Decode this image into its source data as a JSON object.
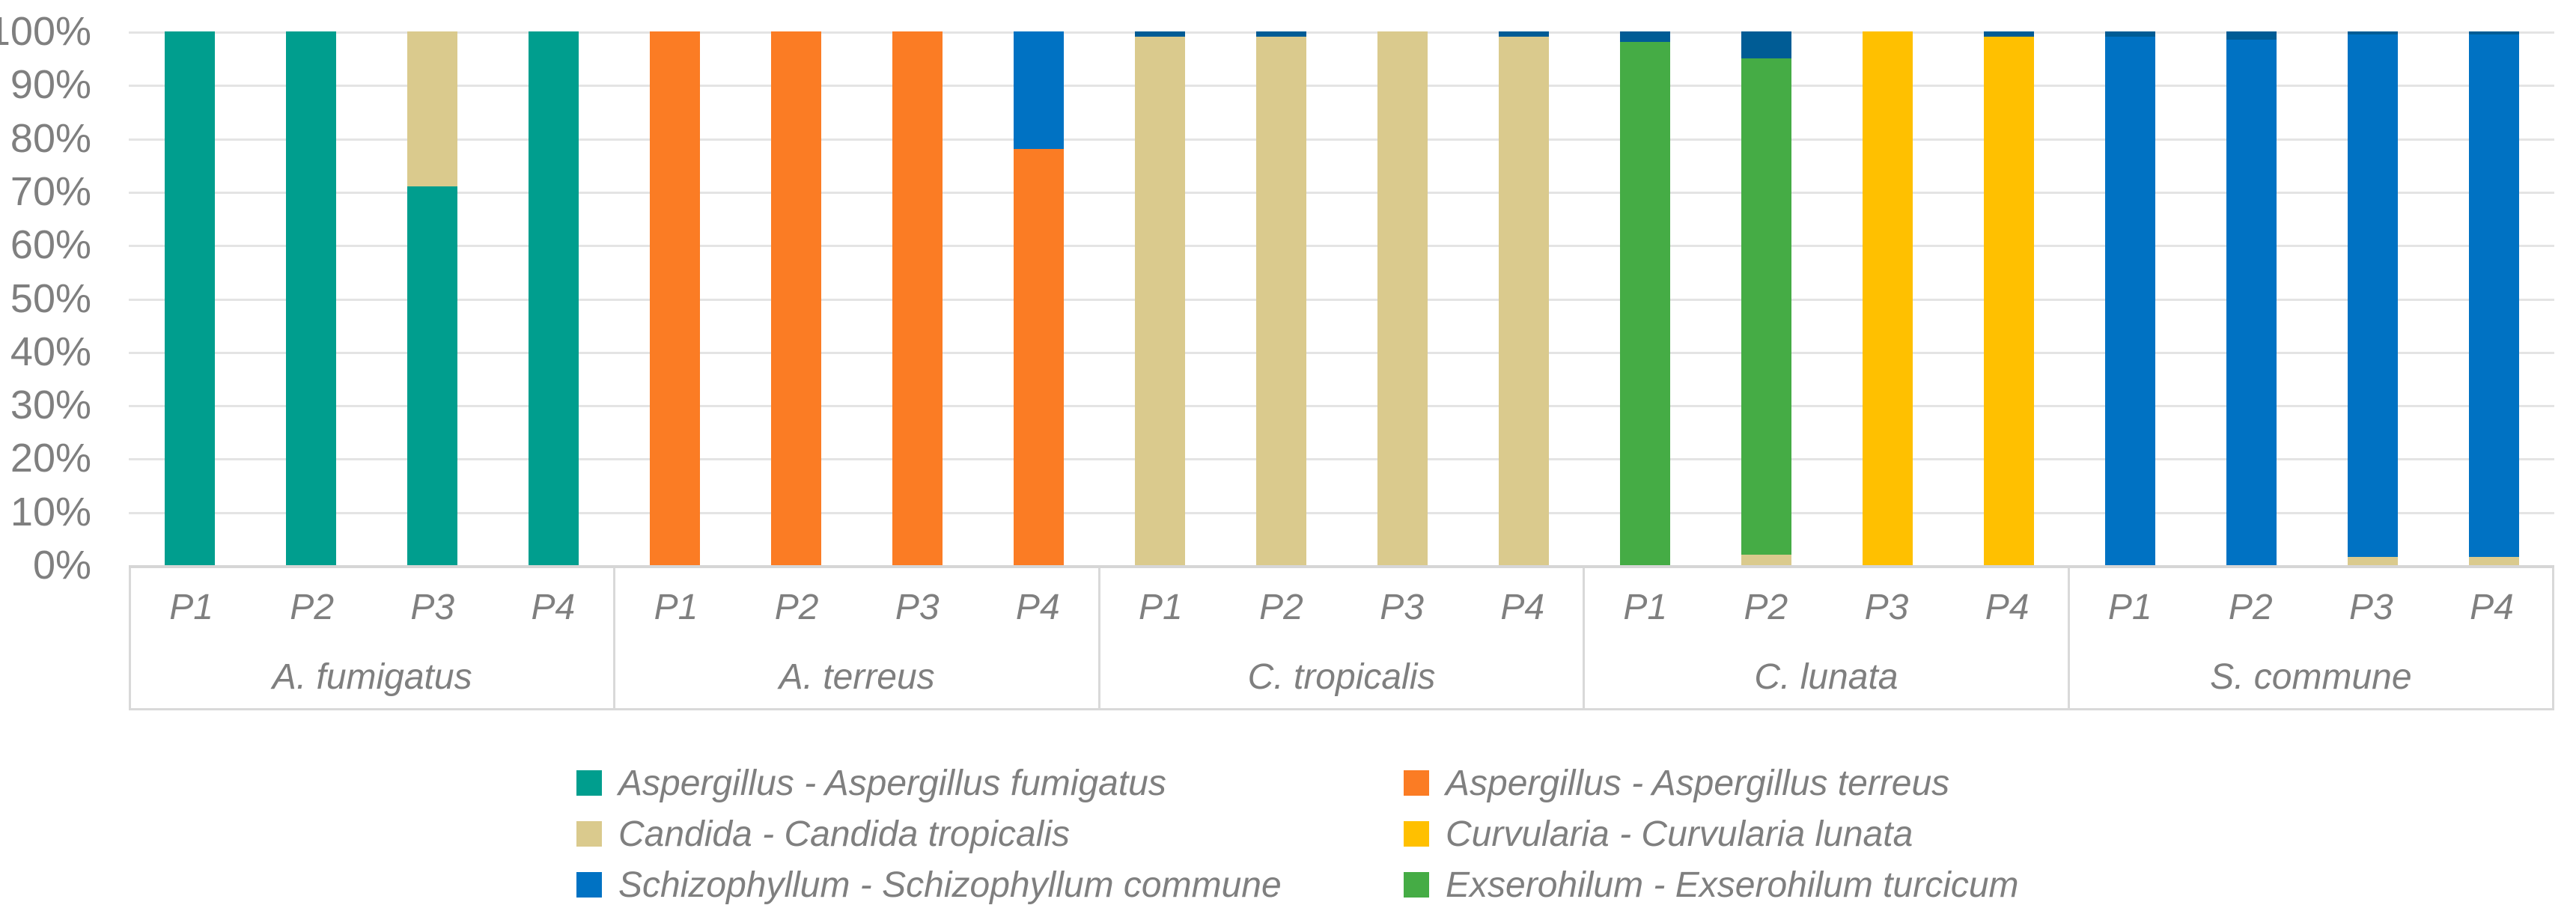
{
  "chart_data": {
    "type": "bar",
    "stacking": "percent",
    "title": "",
    "xlabel": "",
    "ylabel": "",
    "y_axis": {
      "min": 0,
      "max": 100,
      "tick_labels": [
        "100%",
        "90%",
        "80%",
        "70%",
        "60%",
        "50%",
        "40%",
        "30%",
        "20%",
        "10%",
        "0%"
      ],
      "gridlines": true
    },
    "x_axis": {
      "bar_labels_per_group": [
        "P1",
        "P2",
        "P3",
        "P4"
      ],
      "group_labels": [
        "A. fumigatus",
        "A. terreus",
        "C. tropicalis",
        "C. lunata",
        "S. commune"
      ]
    },
    "legend": {
      "position": "bottom",
      "columns": 2,
      "entries": [
        {
          "label": "Aspergillus - Aspergillus fumigatus",
          "color": "#009E8E"
        },
        {
          "label": "Aspergillus - Aspergillus terreus",
          "color": "#FB7C24"
        },
        {
          "label": "Candida - Candida tropicalis",
          "color": "#DACA8D"
        },
        {
          "label": "Curvularia - Curvularia lunata",
          "color": "#FFC000"
        },
        {
          "label": "Schizophyllum - Schizophyllum commune",
          "color": "#0072C3"
        },
        {
          "label": "Exserohilum - Exserohilum turcicum",
          "color": "#45AC45"
        }
      ]
    },
    "rendered_thin_cap_color": "#005C95",
    "groups": [
      {
        "label": "A. fumigatus",
        "bars": [
          {
            "label": "P1",
            "segments": [
              {
                "series": "Aspergillus - Aspergillus fumigatus",
                "value": 100,
                "color": "#009E8E"
              }
            ]
          },
          {
            "label": "P2",
            "segments": [
              {
                "series": "Aspergillus - Aspergillus fumigatus",
                "value": 100,
                "color": "#009E8E"
              }
            ]
          },
          {
            "label": "P3",
            "segments": [
              {
                "series": "Aspergillus - Aspergillus fumigatus",
                "value": 71,
                "color": "#009E8E"
              },
              {
                "series": "Candida - Candida tropicalis",
                "value": 29,
                "color": "#DACA8D"
              }
            ]
          },
          {
            "label": "P4",
            "segments": [
              {
                "series": "Aspergillus - Aspergillus fumigatus",
                "value": 100,
                "color": "#009E8E"
              }
            ]
          }
        ]
      },
      {
        "label": "A. terreus",
        "bars": [
          {
            "label": "P1",
            "segments": [
              {
                "series": "Aspergillus - Aspergillus terreus",
                "value": 100,
                "color": "#FB7C24"
              }
            ]
          },
          {
            "label": "P2",
            "segments": [
              {
                "series": "Aspergillus - Aspergillus terreus",
                "value": 100,
                "color": "#FB7C24"
              }
            ]
          },
          {
            "label": "P3",
            "segments": [
              {
                "series": "Aspergillus - Aspergillus terreus",
                "value": 100,
                "color": "#FB7C24"
              }
            ]
          },
          {
            "label": "P4",
            "segments": [
              {
                "series": "Aspergillus - Aspergillus terreus",
                "value": 78,
                "color": "#FB7C24"
              },
              {
                "series": "Schizophyllum - Schizophyllum commune",
                "value": 22,
                "color": "#0072C3"
              }
            ]
          }
        ]
      },
      {
        "label": "C. tropicalis",
        "bars": [
          {
            "label": "P1",
            "segments": [
              {
                "series": "Candida - Candida tropicalis",
                "value": 99,
                "color": "#DACA8D"
              },
              {
                "series": "Schizophyllum - Schizophyllum commune",
                "value": 1,
                "color": "#005C95"
              }
            ]
          },
          {
            "label": "P2",
            "segments": [
              {
                "series": "Candida - Candida tropicalis",
                "value": 99,
                "color": "#DACA8D"
              },
              {
                "series": "Schizophyllum - Schizophyllum commune",
                "value": 1,
                "color": "#005C95"
              }
            ]
          },
          {
            "label": "P3",
            "segments": [
              {
                "series": "Candida - Candida tropicalis",
                "value": 100,
                "color": "#DACA8D"
              }
            ]
          },
          {
            "label": "P4",
            "segments": [
              {
                "series": "Candida - Candida tropicalis",
                "value": 99,
                "color": "#DACA8D"
              },
              {
                "series": "Schizophyllum - Schizophyllum commune",
                "value": 1,
                "color": "#005C95"
              }
            ]
          }
        ]
      },
      {
        "label": "C. lunata",
        "bars": [
          {
            "label": "P1",
            "segments": [
              {
                "series": "Exserohilum - Exserohilum turcicum",
                "value": 98,
                "color": "#45AC45"
              },
              {
                "series": "Schizophyllum - Schizophyllum commune",
                "value": 2,
                "color": "#005C95"
              }
            ]
          },
          {
            "label": "P2",
            "segments": [
              {
                "series": "Candida - Candida tropicalis",
                "value": 2,
                "color": "#DACA8D"
              },
              {
                "series": "Exserohilum - Exserohilum turcicum",
                "value": 93,
                "color": "#45AC45"
              },
              {
                "series": "Schizophyllum - Schizophyllum commune",
                "value": 5,
                "color": "#005C95"
              }
            ]
          },
          {
            "label": "P3",
            "segments": [
              {
                "series": "Curvularia - Curvularia lunata",
                "value": 100,
                "color": "#FFC000"
              }
            ]
          },
          {
            "label": "P4",
            "segments": [
              {
                "series": "Curvularia - Curvularia lunata",
                "value": 99,
                "color": "#FFC000"
              },
              {
                "series": "Schizophyllum - Schizophyllum commune",
                "value": 1,
                "color": "#005C95"
              }
            ]
          }
        ]
      },
      {
        "label": "S. commune",
        "bars": [
          {
            "label": "P1",
            "segments": [
              {
                "series": "Schizophyllum - Schizophyllum commune",
                "value": 99,
                "color": "#0072C3"
              },
              {
                "series": "Schizophyllum - Schizophyllum commune",
                "value": 1,
                "color": "#005C95"
              }
            ]
          },
          {
            "label": "P2",
            "segments": [
              {
                "series": "Schizophyllum - Schizophyllum commune",
                "value": 98.5,
                "color": "#0072C3"
              },
              {
                "series": "Schizophyllum - Schizophyllum commune",
                "value": 1.5,
                "color": "#005C95"
              }
            ]
          },
          {
            "label": "P3",
            "segments": [
              {
                "series": "Candida - Candida tropicalis",
                "value": 1.5,
                "color": "#DACA8D"
              },
              {
                "series": "Schizophyllum - Schizophyllum commune",
                "value": 98,
                "color": "#0072C3"
              },
              {
                "series": "Schizophyllum - Schizophyllum commune",
                "value": 0.5,
                "color": "#005C95"
              }
            ]
          },
          {
            "label": "P4",
            "segments": [
              {
                "series": "Candida - Candida tropicalis",
                "value": 1.5,
                "color": "#DACA8D"
              },
              {
                "series": "Schizophyllum - Schizophyllum commune",
                "value": 98,
                "color": "#0072C3"
              },
              {
                "series": "Schizophyllum - Schizophyllum commune",
                "value": 0.5,
                "color": "#005C95"
              }
            ]
          }
        ]
      }
    ]
  }
}
